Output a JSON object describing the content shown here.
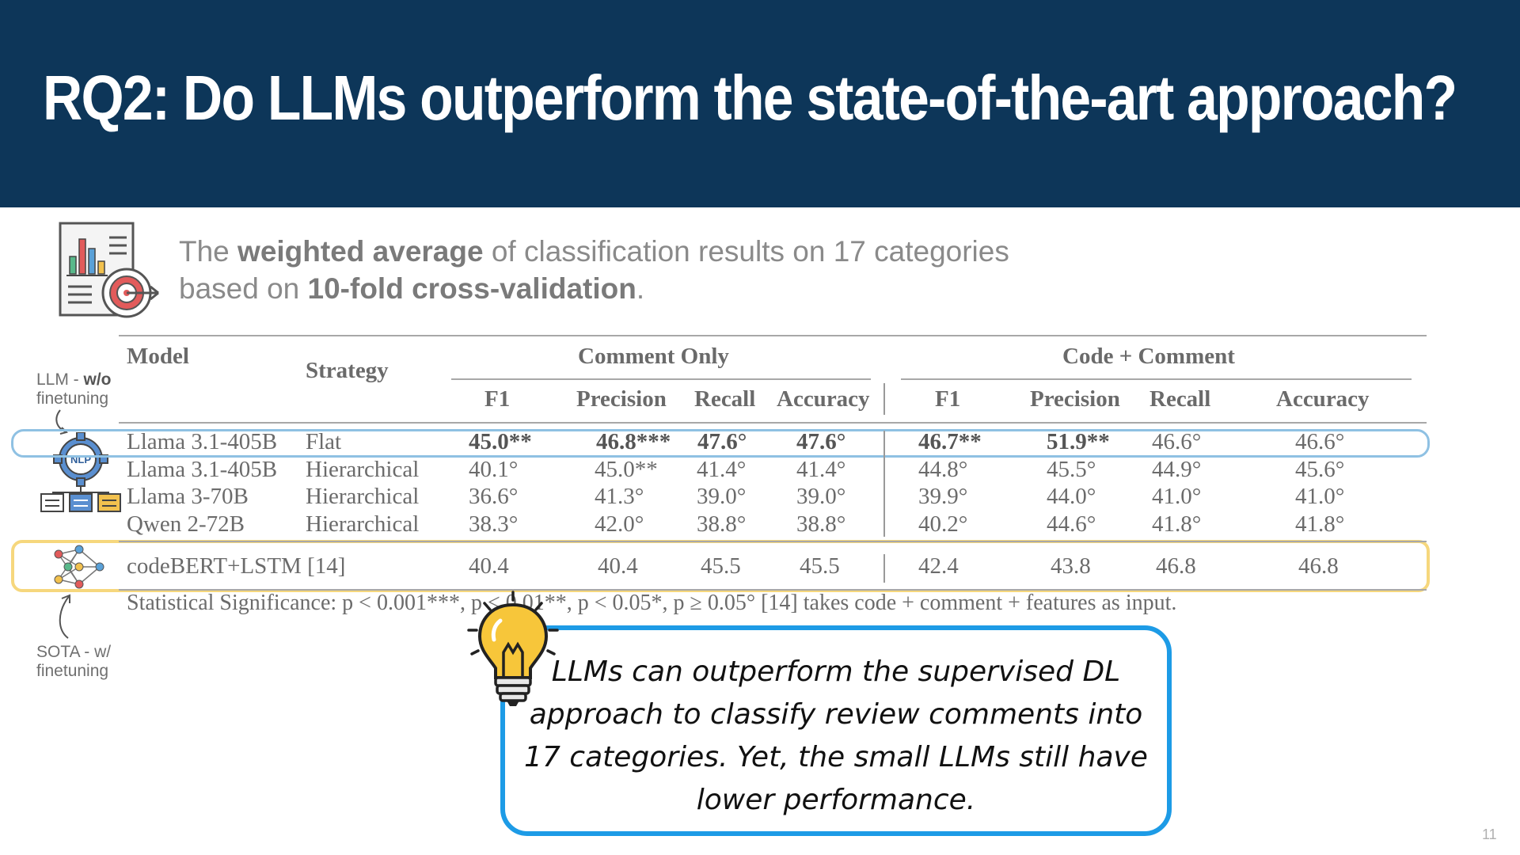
{
  "title": "RQ2: Do LLMs outperform the state-of-the-art approach?",
  "intro": {
    "line1_pre": "The ",
    "line1_bold": "weighted average",
    "line1_post": " of classification results on 17 categories",
    "line2_pre": "based on ",
    "line2_bold": "10-fold cross-validation",
    "line2_post": "."
  },
  "side_labels": {
    "llm_pre": "LLM - ",
    "llm_bold": "w/o",
    "llm_line2": "finetuning",
    "sota_line1": "SOTA - w/",
    "sota_line2": "finetuning",
    "nlp_icon_text": "NLP"
  },
  "table": {
    "headers": {
      "model": "Model",
      "strategy": "Strategy",
      "group1": "Comment  Only",
      "group2": "Code + Comment",
      "f1": "F1",
      "precision": "Precision",
      "recall": "Recall",
      "accuracy": "Accuracy"
    },
    "rows": [
      {
        "model": "Llama 3.1-405B",
        "strategy": "Flat",
        "values": [
          "45.0**",
          "46.8***",
          "47.6°",
          "47.6°",
          "46.7**",
          "51.9**",
          "46.6°",
          "46.6°"
        ]
      },
      {
        "model": "Llama 3.1-405B",
        "strategy": "Hierarchical",
        "values": [
          "40.1°",
          "45.0**",
          "41.4°",
          "41.4°",
          "44.8°",
          "45.5°",
          "44.9°",
          "45.6°"
        ]
      },
      {
        "model": "Llama 3-70B",
        "strategy": "Hierarchical",
        "values": [
          "36.6°",
          "41.3°",
          "39.0°",
          "39.0°",
          "39.9°",
          "44.0°",
          "41.0°",
          "41.0°"
        ]
      },
      {
        "model": "Qwen 2-72B",
        "strategy": "Hierarchical",
        "values": [
          "38.3°",
          "42.0°",
          "38.8°",
          "38.8°",
          "40.2°",
          "44.6°",
          "41.8°",
          "41.8°"
        ]
      }
    ],
    "sota": {
      "model": "codeBERT+LSTM [14]",
      "values": [
        "40.4",
        "40.4",
        "45.5",
        "45.5",
        "42.4",
        "43.8",
        "46.8",
        "46.8"
      ]
    },
    "footnote": "Statistical Significance: p < 0.001***, p < 0.01**, p < 0.05*, p ≥ 0.05°  [14] takes code + comment + features as input."
  },
  "callout": {
    "line1": "LLMs can outperform the supervised DL",
    "line2": "approach to classify review comments into",
    "line3": "17 categories. Yet, the small LLMs still have",
    "line4": "lower performance."
  },
  "page_number": "11",
  "colors": {
    "header_bg": "#0d3659",
    "callout_border": "#1d9be6",
    "highlight_blue": "#8fc1e3",
    "highlight_yellow": "#f6d77d"
  }
}
